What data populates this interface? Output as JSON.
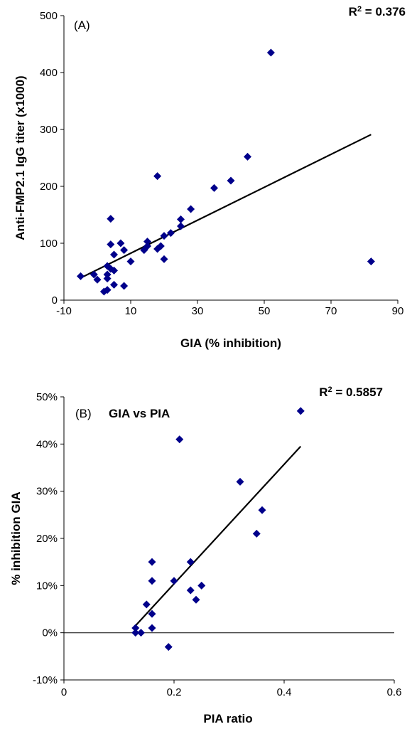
{
  "chart_data": [
    {
      "type": "scatter",
      "panel_tag": "(A)",
      "title": "",
      "r2_prefix": "R",
      "r2_exp": "2",
      "r2_suffix": " = 0.376",
      "xlabel": "GIA (% inhibition)",
      "ylabel": "Anti-FMP2.1 IgG titer (x1000)",
      "xlim": [
        -10,
        90
      ],
      "ylim": [
        0,
        500
      ],
      "xticks": [
        -10,
        10,
        30,
        50,
        70,
        90
      ],
      "yticks": [
        0,
        100,
        200,
        300,
        400,
        500
      ],
      "xtick_labels": [
        "-10",
        "10",
        "30",
        "50",
        "70",
        "90"
      ],
      "ytick_labels": [
        "0",
        "100",
        "200",
        "300",
        "400",
        "500"
      ],
      "marker_color": "#00008B",
      "grid": false,
      "points": [
        {
          "x": -5,
          "y": 42
        },
        {
          "x": -1,
          "y": 45
        },
        {
          "x": 0,
          "y": 36
        },
        {
          "x": 2,
          "y": 15
        },
        {
          "x": 3,
          "y": 18
        },
        {
          "x": 3,
          "y": 38
        },
        {
          "x": 3,
          "y": 45
        },
        {
          "x": 3,
          "y": 60
        },
        {
          "x": 4,
          "y": 55
        },
        {
          "x": 4,
          "y": 98
        },
        {
          "x": 4,
          "y": 143
        },
        {
          "x": 5,
          "y": 27
        },
        {
          "x": 5,
          "y": 52
        },
        {
          "x": 5,
          "y": 80
        },
        {
          "x": 7,
          "y": 100
        },
        {
          "x": 8,
          "y": 25
        },
        {
          "x": 8,
          "y": 88
        },
        {
          "x": 10,
          "y": 68
        },
        {
          "x": 14,
          "y": 88
        },
        {
          "x": 15,
          "y": 95
        },
        {
          "x": 15,
          "y": 103
        },
        {
          "x": 18,
          "y": 218
        },
        {
          "x": 18,
          "y": 90
        },
        {
          "x": 19,
          "y": 95
        },
        {
          "x": 20,
          "y": 72
        },
        {
          "x": 20,
          "y": 113
        },
        {
          "x": 22,
          "y": 118
        },
        {
          "x": 25,
          "y": 130
        },
        {
          "x": 25,
          "y": 142
        },
        {
          "x": 28,
          "y": 160
        },
        {
          "x": 35,
          "y": 197
        },
        {
          "x": 40,
          "y": 210
        },
        {
          "x": 45,
          "y": 252
        },
        {
          "x": 52,
          "y": 435
        },
        {
          "x": 82,
          "y": 68
        }
      ],
      "trendline": {
        "x": [
          -5,
          82
        ],
        "y": [
          39,
          291
        ]
      }
    },
    {
      "type": "scatter",
      "panel_tag": "(B)",
      "title": "GIA vs PIA",
      "r2_prefix": "R",
      "r2_exp": "2",
      "r2_suffix": " = 0.5857",
      "xlabel": "PIA ratio",
      "ylabel": "% inhibition GIA",
      "xlim": [
        0,
        0.6
      ],
      "ylim": [
        -10,
        50
      ],
      "xticks": [
        0,
        0.2,
        0.4,
        0.6
      ],
      "yticks": [
        -10,
        0,
        10,
        20,
        30,
        40,
        50
      ],
      "xtick_labels": [
        "0",
        "0.2",
        "0.4",
        "0.6"
      ],
      "ytick_labels": [
        "-10%",
        "0%",
        "10%",
        "20%",
        "30%",
        "40%",
        "50%"
      ],
      "marker_color": "#00008B",
      "grid": false,
      "points": [
        {
          "x": 0.13,
          "y": 1
        },
        {
          "x": 0.13,
          "y": 0
        },
        {
          "x": 0.14,
          "y": 0
        },
        {
          "x": 0.15,
          "y": 6
        },
        {
          "x": 0.16,
          "y": 1
        },
        {
          "x": 0.16,
          "y": 4
        },
        {
          "x": 0.16,
          "y": 11
        },
        {
          "x": 0.16,
          "y": 15
        },
        {
          "x": 0.19,
          "y": -3
        },
        {
          "x": 0.2,
          "y": 11
        },
        {
          "x": 0.21,
          "y": 41
        },
        {
          "x": 0.23,
          "y": 15
        },
        {
          "x": 0.23,
          "y": 9
        },
        {
          "x": 0.24,
          "y": 7
        },
        {
          "x": 0.25,
          "y": 10
        },
        {
          "x": 0.32,
          "y": 32
        },
        {
          "x": 0.35,
          "y": 21
        },
        {
          "x": 0.36,
          "y": 26
        },
        {
          "x": 0.43,
          "y": 47
        }
      ],
      "trendline": {
        "x": [
          0.13,
          0.43
        ],
        "y": [
          1.5,
          39.5
        ]
      }
    }
  ]
}
